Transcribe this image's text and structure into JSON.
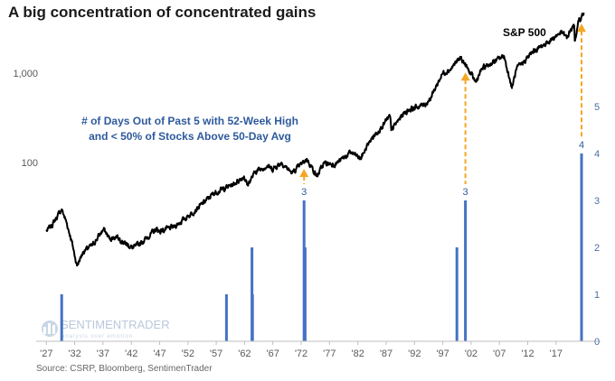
{
  "title": "A big concentration of concentrated gains",
  "source": "Source: CSRP, Bloomberg, SentimenTrader",
  "watermark": {
    "brand": "SENTIMENTRADER",
    "tagline": "analysis over emotion"
  },
  "colors": {
    "price_line": "#000000",
    "bars": "#4472c4",
    "arrows": "#f5a623",
    "annotation_text": "#2e5a9c"
  },
  "chart_data": {
    "type": "line",
    "title": "A big concentration of concentrated gains",
    "annotation": [
      "# of Days Out of Past 5 with 52-Week High",
      "and < 50% of Stocks Above 50-Day Avg"
    ],
    "x_ticks": [
      "'27",
      "'32",
      "'37",
      "'42",
      "'47",
      "'52",
      "'57",
      "'62",
      "'67",
      "'72",
      "'77",
      "'82",
      "'87",
      "'92",
      "'97",
      "'02",
      "'07",
      "'12",
      "'17"
    ],
    "left_axis": {
      "scale": "log",
      "ticks": [
        "100",
        "1,000"
      ],
      "tick_values": [
        100,
        1000
      ],
      "ylim": [
        4,
        3500
      ]
    },
    "right_axis": {
      "ticks": [
        "0",
        "1",
        "2",
        "3",
        "4",
        "5"
      ],
      "ylim": [
        0,
        6
      ]
    },
    "series": [
      {
        "name": "S&P 500",
        "axis": "left",
        "x": [
          1927,
          1928,
          1929.7,
          1930.5,
          1931.5,
          1932.4,
          1933.5,
          1935.2,
          1937.1,
          1938.2,
          1939.5,
          1940.5,
          1942.3,
          1944,
          1946.4,
          1947,
          1949.5,
          1952,
          1954,
          1956.5,
          1958,
          1960,
          1961.9,
          1962.5,
          1964,
          1966,
          1966.9,
          1968.5,
          1970.4,
          1973,
          1974.8,
          1976,
          1978,
          1980.8,
          1982.5,
          1984,
          1987.7,
          1987.9,
          1990,
          1991,
          1994,
          1995,
          1996,
          1997,
          1998.5,
          1999,
          2000.2,
          2002.8,
          2004,
          2007.8,
          2009.2,
          2010,
          2013,
          2015,
          2018,
          2018.9,
          2019.5,
          2020.2,
          2020.3,
          2021,
          2021.9
        ],
        "values": [
          17,
          20,
          30,
          22,
          13,
          7,
          10,
          12,
          18,
          14,
          15,
          13,
          11,
          13,
          18,
          17,
          19,
          25,
          32,
          45,
          50,
          57,
          70,
          56,
          80,
          92,
          84,
          100,
          76,
          110,
          70,
          98,
          96,
          130,
          110,
          170,
          330,
          230,
          350,
          390,
          450,
          550,
          750,
          1000,
          1120,
          1260,
          1480,
          800,
          1130,
          1560,
          680,
          1100,
          1750,
          2100,
          2900,
          2450,
          3000,
          3380,
          2300,
          3800,
          4750
        ]
      },
      {
        "name": "# of Days Out of Past 5 with 52-Week High and < 50% of Stocks Above 50-Day Avg",
        "axis": "right",
        "type": "bar",
        "x": [
          1929.7,
          1958.8,
          1963.3,
          1963.4,
          1972.5,
          1972.7,
          1999.5,
          2001,
          2021.5
        ],
        "values": [
          1,
          1,
          2,
          1,
          3,
          2,
          2,
          3,
          4
        ]
      }
    ],
    "data_labels": [
      {
        "x": 1972.5,
        "text": "3"
      },
      {
        "x": 2001,
        "text": "3"
      },
      {
        "x": 2021.5,
        "text": "4"
      }
    ],
    "series_label": "S&P 500",
    "arrows_at": [
      1972.5,
      2001,
      2021.5
    ],
    "grid": false,
    "legend": "none"
  }
}
